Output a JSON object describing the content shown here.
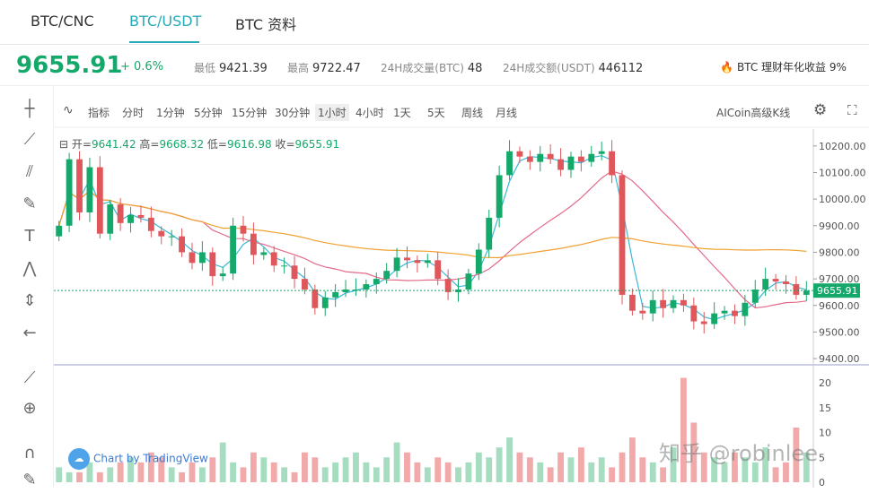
{
  "tabs": [
    {
      "label": "BTC/CNC"
    },
    {
      "label": "BTC/USDT"
    },
    {
      "label": "BTC 资料"
    }
  ],
  "ticker": {
    "price": "9655.91",
    "change": "+ 0.6%",
    "low_label": "最低",
    "low": "9421.39",
    "high_label": "最高",
    "high": "9722.47",
    "vol_btc_label": "24H成交量(BTC)",
    "vol_btc": "48",
    "vol_usdt_label": "24H成交额(USDT)",
    "vol_usdt": "446112",
    "promo": "BTC 理财年化收益 9%",
    "up_color": "#15a86b",
    "down_color": "#e0575b"
  },
  "intervals": {
    "indicator_label": "指标",
    "items": [
      "分时",
      "1分钟",
      "5分钟",
      "15分钟",
      "30分钟",
      "1小时",
      "4小时",
      "1天",
      "5天",
      "周线",
      "月线"
    ],
    "active": "1小时",
    "advanced_label": "AICoin高级K线"
  },
  "ohlc": {
    "open_label": "开=",
    "open": "9641.42",
    "high_label": "高=",
    "high": "9668.32",
    "low_label": "低=",
    "low": "9616.98",
    "close_label": "收=",
    "close": "9655.91"
  },
  "toolbar_icons": [
    "crosshair-icon",
    "trend-line-icon",
    "fib-icon",
    "brush-icon",
    "text-icon",
    "pattern-icon",
    "measure-icon",
    "back-arrow-icon",
    "ruler-icon",
    "zoom-in-icon",
    "magnet-icon",
    "lock-icon"
  ],
  "chart_data": {
    "type": "candlestick",
    "ylim": [
      9380,
      10250
    ],
    "y_ticks": [
      "10200.00",
      "10100.00",
      "10000.00",
      "9900.00",
      "9800.00",
      "9700.00",
      "9600.00",
      "9500.00",
      "9400.00"
    ],
    "last_price_label": "9655.91",
    "volume_ticks": [
      "20",
      "15",
      "10",
      "5",
      "0"
    ],
    "volume_ylim": [
      0,
      22
    ],
    "close_series": [
      9900,
      10150,
      9950,
      10120,
      9870,
      9980,
      9910,
      9940,
      9930,
      9880,
      9860,
      9860,
      9800,
      9760,
      9800,
      9710,
      9720,
      9900,
      9870,
      9790,
      9800,
      9750,
      9750,
      9700,
      9660,
      9590,
      9630,
      9650,
      9660,
      9660,
      9680,
      9700,
      9730,
      9780,
      9770,
      9760,
      9770,
      9700,
      9650,
      9660,
      9720,
      9810,
      9930,
      10090,
      10180,
      10160,
      10140,
      10170,
      10150,
      10110,
      10160,
      10140,
      10170,
      10180,
      10090,
      9640,
      9580,
      9570,
      9620,
      9590,
      9620,
      9600,
      9540,
      9530,
      9570,
      9580,
      9560,
      9610,
      9660,
      9700,
      9690,
      9680,
      9640,
      9656
    ],
    "volumes": [
      3,
      2,
      2,
      4,
      2,
      3,
      4,
      5,
      4,
      6,
      5,
      3,
      2,
      4,
      3,
      5,
      8,
      4,
      3,
      6,
      5,
      4,
      3,
      2,
      6,
      5,
      3,
      4,
      5,
      6,
      4,
      3,
      5,
      8,
      6,
      4,
      3,
      5,
      4,
      3,
      4,
      6,
      5,
      7,
      9,
      6,
      5,
      4,
      3,
      6,
      5,
      7,
      4,
      5,
      3,
      6,
      9,
      5,
      4,
      3,
      7,
      21,
      12,
      6,
      5,
      4,
      6,
      5,
      4,
      7,
      3,
      4,
      11,
      6
    ],
    "ma_fast_label": "",
    "ma_colors": {
      "fast": "#3ab8d6",
      "mid": "#e36a8a",
      "slow": "#f0a030"
    }
  },
  "tv_badge": "Chart by TradingView",
  "watermark": "知乎 @robinlee"
}
